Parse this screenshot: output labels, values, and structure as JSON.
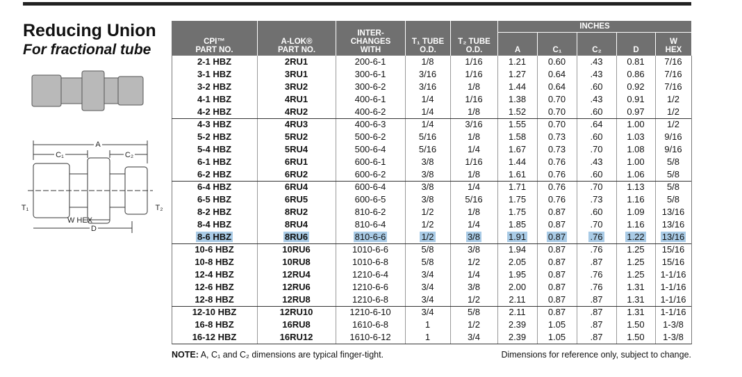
{
  "header": {
    "title": "Reducing Union",
    "subtitle": "For fractional tube"
  },
  "diagram": {
    "labels": {
      "a": "A",
      "c1": "C₁",
      "c2": "C₂",
      "t1": "T₁",
      "t2": "T₂",
      "whex": "W HEX",
      "d": "D"
    }
  },
  "table": {
    "group_header": "INCHES",
    "columns": [
      "CPI™\nPART NO.",
      "A-LOK®\nPART NO.",
      "INTER-\nCHANGES\nWITH",
      "T₁ TUBE\nO.D.",
      "T₂ TUBE\nO.D.",
      "A",
      "C₁",
      "C₂",
      "D",
      "W\nHEX"
    ],
    "highlighted_row": 14,
    "rows": [
      [
        "2-1 HBZ",
        "2RU1",
        "200-6-1",
        "1/8",
        "1/16",
        "1.21",
        "0.60",
        ".43",
        "0.81",
        "7/16"
      ],
      [
        "3-1 HBZ",
        "3RU1",
        "300-6-1",
        "3/16",
        "1/16",
        "1.27",
        "0.64",
        ".43",
        "0.86",
        "7/16"
      ],
      [
        "3-2 HBZ",
        "3RU2",
        "300-6-2",
        "3/16",
        "1/8",
        "1.44",
        "0.64",
        ".60",
        "0.92",
        "7/16"
      ],
      [
        "4-1 HBZ",
        "4RU1",
        "400-6-1",
        "1/4",
        "1/16",
        "1.38",
        "0.70",
        ".43",
        "0.91",
        "1/2"
      ],
      [
        "4-2 HBZ",
        "4RU2",
        "400-6-2",
        "1/4",
        "1/8",
        "1.52",
        "0.70",
        ".60",
        "0.97",
        "1/2"
      ],
      [
        "4-3 HBZ",
        "4RU3",
        "400-6-3",
        "1/4",
        "3/16",
        "1.55",
        "0.70",
        ".64",
        "1.00",
        "1/2"
      ],
      [
        "5-2 HBZ",
        "5RU2",
        "500-6-2",
        "5/16",
        "1/8",
        "1.58",
        "0.73",
        ".60",
        "1.03",
        "9/16"
      ],
      [
        "5-4 HBZ",
        "5RU4",
        "500-6-4",
        "5/16",
        "1/4",
        "1.67",
        "0.73",
        ".70",
        "1.08",
        "9/16"
      ],
      [
        "6-1 HBZ",
        "6RU1",
        "600-6-1",
        "3/8",
        "1/16",
        "1.44",
        "0.76",
        ".43",
        "1.00",
        "5/8"
      ],
      [
        "6-2 HBZ",
        "6RU2",
        "600-6-2",
        "3/8",
        "1/8",
        "1.61",
        "0.76",
        ".60",
        "1.06",
        "5/8"
      ],
      [
        "6-4 HBZ",
        "6RU4",
        "600-6-4",
        "3/8",
        "1/4",
        "1.71",
        "0.76",
        ".70",
        "1.13",
        "5/8"
      ],
      [
        "6-5 HBZ",
        "6RU5",
        "600-6-5",
        "3/8",
        "5/16",
        "1.75",
        "0.76",
        ".73",
        "1.16",
        "5/8"
      ],
      [
        "8-2 HBZ",
        "8RU2",
        "810-6-2",
        "1/2",
        "1/8",
        "1.75",
        "0.87",
        ".60",
        "1.09",
        "13/16"
      ],
      [
        "8-4 HBZ",
        "8RU4",
        "810-6-4",
        "1/2",
        "1/4",
        "1.85",
        "0.87",
        ".70",
        "1.16",
        "13/16"
      ],
      [
        "8-6 HBZ",
        "8RU6",
        "810-6-6",
        "1/2",
        "3/8",
        "1.91",
        "0.87",
        ".76",
        "1.22",
        "13/16"
      ],
      [
        "10-6 HBZ",
        "10RU6",
        "1010-6-6",
        "5/8",
        "3/8",
        "1.94",
        "0.87",
        ".76",
        "1.25",
        "15/16"
      ],
      [
        "10-8 HBZ",
        "10RU8",
        "1010-6-8",
        "5/8",
        "1/2",
        "2.05",
        "0.87",
        ".87",
        "1.25",
        "15/16"
      ],
      [
        "12-4 HBZ",
        "12RU4",
        "1210-6-4",
        "3/4",
        "1/4",
        "1.95",
        "0.87",
        ".76",
        "1.25",
        "1-1/16"
      ],
      [
        "12-6 HBZ",
        "12RU6",
        "1210-6-6",
        "3/4",
        "3/8",
        "2.00",
        "0.87",
        ".76",
        "1.31",
        "1-1/16"
      ],
      [
        "12-8 HBZ",
        "12RU8",
        "1210-6-8",
        "3/4",
        "1/2",
        "2.11",
        "0.87",
        ".87",
        "1.31",
        "1-1/16"
      ],
      [
        "12-10 HBZ",
        "12RU10",
        "1210-6-10",
        "3/4",
        "5/8",
        "2.11",
        "0.87",
        ".87",
        "1.31",
        "1-1/16"
      ],
      [
        "16-8 HBZ",
        "16RU8",
        "1610-6-8",
        "1",
        "1/2",
        "2.39",
        "1.05",
        ".87",
        "1.50",
        "1-3/8"
      ],
      [
        "16-12 HBZ",
        "16RU12",
        "1610-6-12",
        "1",
        "3/4",
        "2.39",
        "1.05",
        ".87",
        "1.50",
        "1-3/8"
      ]
    ]
  },
  "footer": {
    "note_label": "NOTE:",
    "note": "A, C₁ and C₂ dimensions are typical finger-tight.",
    "disclaimer": "Dimensions for reference only, subject to change."
  }
}
